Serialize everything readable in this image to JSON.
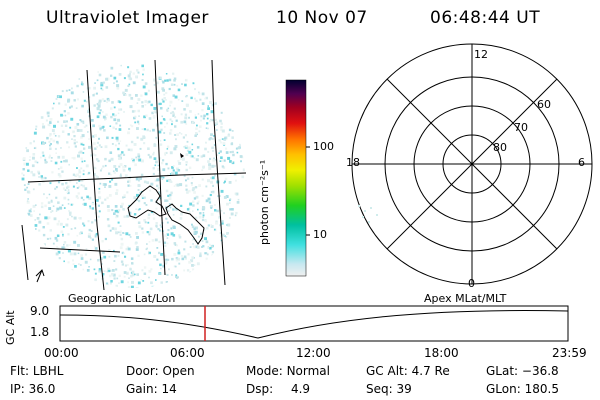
{
  "header": {
    "instrument": "Ultraviolet Imager",
    "date": "10 Nov 07",
    "time": "06:48:44 UT"
  },
  "colorbar": {
    "unit_label": "photon cm⁻²s⁻¹",
    "ticks": [
      "100",
      "10"
    ]
  },
  "polar_plot": {
    "mlt_labels": {
      "top": "12",
      "left": "18",
      "right": "6",
      "bottom": "0"
    },
    "mlat_labels": [
      "60",
      "70",
      "80"
    ]
  },
  "timeline": {
    "left_title": "Geographic Lat/Lon",
    "right_title": "Apex MLat/MLT",
    "y_axis_label": "GC Alt",
    "y_ticks": [
      "9.0",
      "1.8"
    ],
    "x_ticks": [
      "00:00",
      "06:00",
      "12:00",
      "18:00",
      "23:59"
    ],
    "current_time_marker_color": "#d02020"
  },
  "status": {
    "filter": {
      "label": "Flt:",
      "value": "LBHL"
    },
    "ip": {
      "label": "IP:",
      "value": "36.0"
    },
    "door": {
      "label": "Door:",
      "value": "Open"
    },
    "gain": {
      "label": "Gain:",
      "value": "14"
    },
    "mode": {
      "label": "Mode:",
      "value": "Normal"
    },
    "dsp": {
      "label": "Dsp:",
      "value": "4.9"
    },
    "gc_alt": {
      "label": "GC Alt:",
      "value": "4.7 Re"
    },
    "seq": {
      "label": "Seq:",
      "value": "39"
    },
    "glat": {
      "label": "GLat:",
      "value": "−36.8"
    },
    "glon": {
      "label": "GLon:",
      "value": "180.5"
    }
  }
}
